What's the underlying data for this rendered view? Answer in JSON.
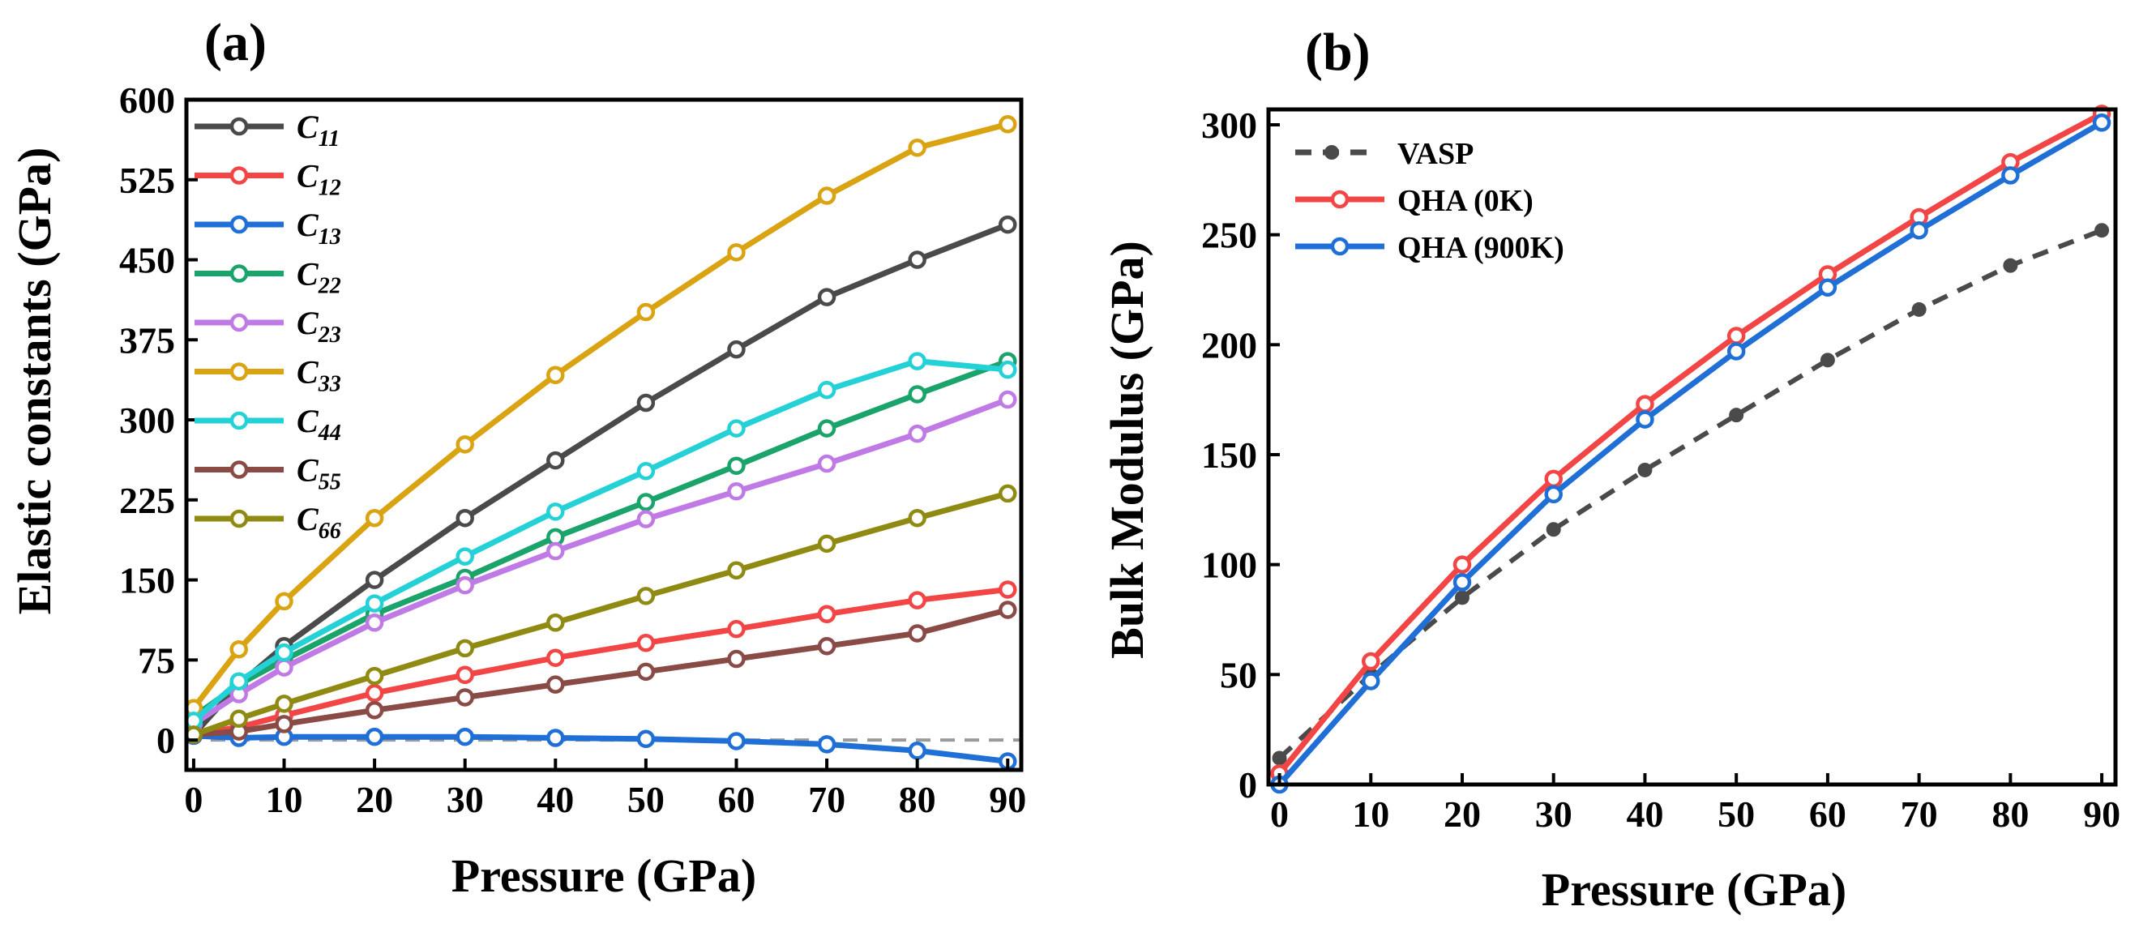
{
  "chart_data": [
    {
      "type": "line",
      "panel_label": "(a)",
      "xlabel": "Pressure (GPa)",
      "ylabel": "Elastic constants (GPa)",
      "xlim": [
        -0.8,
        91.5
      ],
      "ylim": [
        -28,
        600
      ],
      "xticks": [
        0,
        10,
        20,
        30,
        40,
        50,
        60,
        70,
        80,
        90
      ],
      "xtick_labels": [
        "0",
        "10",
        "20",
        "30",
        "40",
        "50",
        "60",
        "70",
        "80",
        "90"
      ],
      "yticks": [
        0,
        75,
        150,
        225,
        300,
        375,
        450,
        525,
        600
      ],
      "ytick_labels": [
        "0",
        "75",
        "150",
        "225",
        "300",
        "375",
        "450",
        "525",
        "600"
      ],
      "reference_line": {
        "y": 0,
        "style": "dashed",
        "color": "#9a9a9a"
      },
      "legend_position": "top-left",
      "series": [
        {
          "name": "C11",
          "sym": "C",
          "sub": "11",
          "color": "#4a4a4a",
          "x": [
            0,
            5,
            10,
            20,
            30,
            40,
            50,
            60,
            70,
            80,
            90
          ],
          "values": [
            5,
            52,
            88,
            150,
            208,
            262,
            316,
            366,
            415,
            450,
            483
          ]
        },
        {
          "name": "C12",
          "sym": "C",
          "sub": "12",
          "color": "#f24545",
          "x": [
            0,
            5,
            10,
            20,
            30,
            40,
            50,
            60,
            70,
            80,
            90
          ],
          "values": [
            5,
            12,
            23,
            44,
            61,
            77,
            91,
            104,
            118,
            131,
            141
          ]
        },
        {
          "name": "C13",
          "sym": "C",
          "sub": "13",
          "color": "#1f6fd6",
          "x": [
            0,
            5,
            10,
            20,
            30,
            40,
            50,
            60,
            70,
            80,
            90
          ],
          "values": [
            4,
            2,
            3,
            3,
            3,
            2,
            1,
            -1,
            -4,
            -10,
            -20
          ]
        },
        {
          "name": "C22",
          "sym": "C",
          "sub": "22",
          "color": "#1aa36a",
          "x": [
            0,
            5,
            10,
            20,
            30,
            40,
            50,
            60,
            70,
            80,
            90
          ],
          "values": [
            22,
            52,
            75,
            118,
            152,
            190,
            223,
            257,
            292,
            324,
            355
          ]
        },
        {
          "name": "C23",
          "sym": "C",
          "sub": "23",
          "color": "#c07ae6",
          "x": [
            0,
            5,
            10,
            20,
            30,
            40,
            50,
            60,
            70,
            80,
            90
          ],
          "values": [
            15,
            43,
            68,
            110,
            145,
            177,
            207,
            233,
            259,
            287,
            319
          ]
        },
        {
          "name": "C33",
          "sym": "C",
          "sub": "33",
          "color": "#d9a312",
          "x": [
            0,
            5,
            10,
            20,
            30,
            40,
            50,
            60,
            70,
            80,
            90
          ],
          "values": [
            30,
            85,
            130,
            208,
            277,
            342,
            401,
            457,
            510,
            555,
            577
          ]
        },
        {
          "name": "C44",
          "sym": "C",
          "sub": "44",
          "color": "#23d1d6",
          "x": [
            0,
            5,
            10,
            20,
            30,
            40,
            50,
            60,
            70,
            80,
            90
          ],
          "values": [
            18,
            55,
            82,
            128,
            172,
            214,
            252,
            292,
            328,
            355,
            347
          ]
        },
        {
          "name": "C55",
          "sym": "C",
          "sub": "55",
          "color": "#8a4a45",
          "x": [
            0,
            5,
            10,
            20,
            30,
            40,
            50,
            60,
            70,
            80,
            90
          ],
          "values": [
            5,
            8,
            15,
            28,
            40,
            52,
            64,
            76,
            88,
            100,
            122
          ]
        },
        {
          "name": "C66",
          "sym": "C",
          "sub": "66",
          "color": "#8f8a12",
          "x": [
            0,
            5,
            10,
            20,
            30,
            40,
            50,
            60,
            70,
            80,
            90
          ],
          "values": [
            5,
            20,
            34,
            60,
            86,
            110,
            135,
            159,
            184,
            208,
            231
          ]
        }
      ]
    },
    {
      "type": "line",
      "panel_label": "(b)",
      "xlabel": "Pressure (GPa)",
      "ylabel": "Bulk Modulus (GPa)",
      "xlim": [
        -1.2,
        91.5
      ],
      "ylim": [
        0,
        307
      ],
      "xticks": [
        0,
        10,
        20,
        30,
        40,
        50,
        60,
        70,
        80,
        90
      ],
      "xtick_labels": [
        "0",
        "10",
        "20",
        "30",
        "40",
        "50",
        "60",
        "70",
        "80",
        "90"
      ],
      "yticks": [
        0,
        50,
        100,
        150,
        200,
        250,
        300
      ],
      "ytick_labels": [
        "0",
        "50",
        "100",
        "150",
        "200",
        "250",
        "300"
      ],
      "legend_position": "top-left",
      "series": [
        {
          "name": "VASP",
          "color": "#4a4a4a",
          "style": "dashed",
          "marker": "filled-circle",
          "x": [
            0,
            10,
            20,
            30,
            40,
            50,
            60,
            70,
            80,
            90
          ],
          "values": [
            12,
            50,
            85,
            116,
            143,
            168,
            193,
            216,
            236,
            252
          ]
        },
        {
          "name": "QHA (0K)",
          "color": "#f24545",
          "style": "solid",
          "marker": "open-circle",
          "x": [
            0,
            10,
            20,
            30,
            40,
            50,
            60,
            70,
            80,
            90
          ],
          "values": [
            5,
            56,
            100,
            139,
            173,
            204,
            232,
            258,
            283,
            305
          ]
        },
        {
          "name": "QHA (900K)",
          "color": "#1f6fd6",
          "style": "solid",
          "marker": "open-circle",
          "x": [
            0,
            10,
            20,
            30,
            40,
            50,
            60,
            70,
            80,
            90
          ],
          "values": [
            0,
            47,
            92,
            132,
            166,
            197,
            226,
            252,
            277,
            301
          ]
        }
      ]
    }
  ]
}
